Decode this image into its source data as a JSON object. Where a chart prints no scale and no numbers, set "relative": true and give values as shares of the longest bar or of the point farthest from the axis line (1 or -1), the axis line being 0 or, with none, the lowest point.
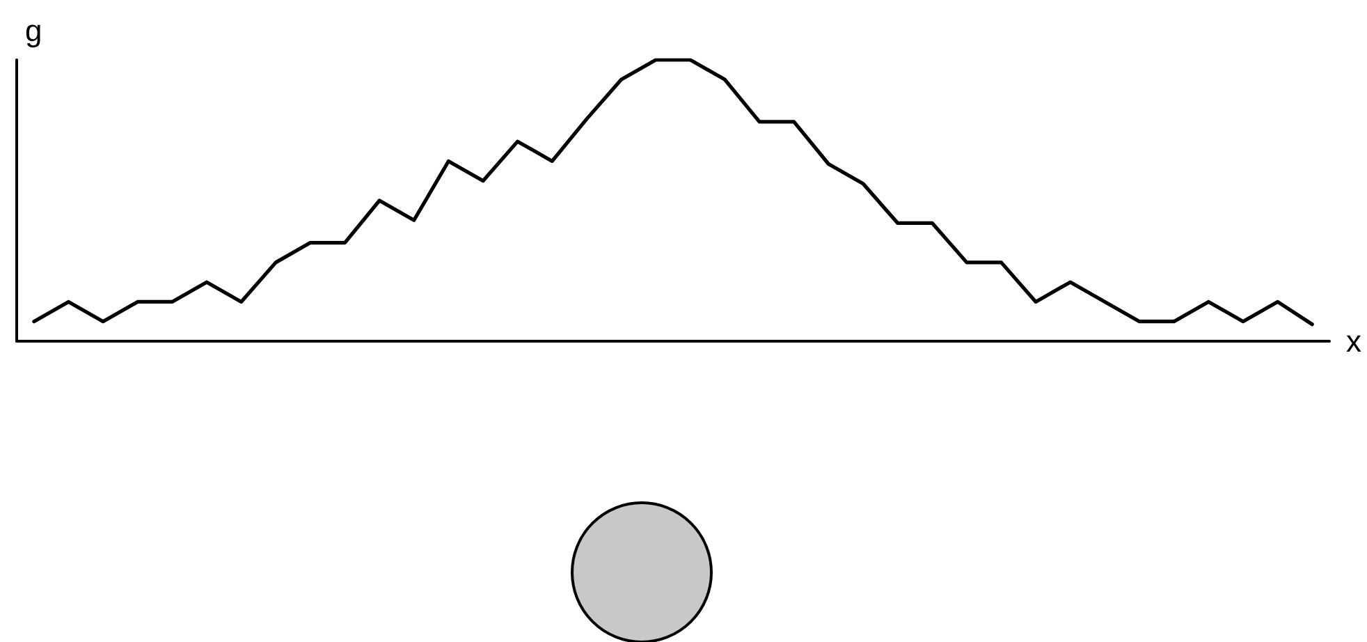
{
  "chart_data": {
    "type": "line",
    "xlabel": "x",
    "ylabel": "g",
    "relative": true,
    "categories": [
      null,
      null,
      null,
      null,
      null,
      null,
      null,
      null,
      null,
      null,
      null,
      null,
      null,
      null,
      null,
      null,
      null,
      null,
      null,
      null,
      null,
      null,
      null,
      null,
      null,
      null,
      null,
      null,
      null,
      null,
      null,
      null,
      null,
      null,
      null,
      null,
      null,
      null
    ],
    "values": [
      0.07,
      0.14,
      0.07,
      0.14,
      0.14,
      0.21,
      0.14,
      0.28,
      0.35,
      0.35,
      0.5,
      0.43,
      0.64,
      0.57,
      0.71,
      0.64,
      0.79,
      0.93,
      1,
      1,
      0.93,
      0.78,
      0.78,
      0.63,
      0.56,
      0.42,
      0.42,
      0.28,
      0.28,
      0.14,
      0.21,
      0.14,
      0.07,
      0.07,
      0.14,
      0.07,
      0.14,
      0.06
    ],
    "color": "#000000",
    "marker": "none",
    "line_style": "solid",
    "grid": false
  }
}
